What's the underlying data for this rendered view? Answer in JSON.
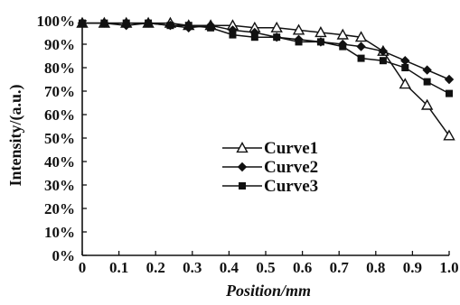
{
  "chart_data": {
    "type": "line",
    "xlabel": "Position/mm",
    "ylabel": "Intensity/(a.u.)",
    "xlim": [
      0,
      1.0
    ],
    "ylim": [
      0,
      100
    ],
    "x_ticks": [
      0,
      0.1,
      0.2,
      0.3,
      0.4,
      0.5,
      0.6,
      0.7,
      0.8,
      0.9,
      1.0
    ],
    "x_tick_labels": [
      "0",
      "0.1",
      "0.2",
      "0.3",
      "0.4",
      "0.5",
      "0.6",
      "0.7",
      "0.8",
      "0.9",
      "1.0"
    ],
    "y_ticks": [
      0,
      10,
      20,
      30,
      40,
      50,
      60,
      70,
      80,
      90,
      100
    ],
    "y_tick_labels": [
      "0%",
      "10%",
      "20%",
      "30%",
      "40%",
      "50%",
      "60%",
      "70%",
      "80%",
      "90%",
      "100%"
    ],
    "grid": false,
    "legend_position": "center",
    "colors": {
      "line": "#111111",
      "axis": "#111111"
    },
    "series": [
      {
        "name": "Curve1",
        "marker": "triangle-open",
        "x": [
          0,
          0.06,
          0.12,
          0.18,
          0.24,
          0.29,
          0.35,
          0.41,
          0.47,
          0.53,
          0.59,
          0.65,
          0.71,
          0.76,
          0.82,
          0.88,
          0.94,
          1.0
        ],
        "y": [
          99,
          99,
          99,
          99,
          99,
          98,
          98,
          98,
          97,
          97,
          96,
          95,
          94,
          93,
          87,
          73,
          64,
          51
        ]
      },
      {
        "name": "Curve2",
        "marker": "diamond-filled",
        "x": [
          0,
          0.06,
          0.12,
          0.18,
          0.24,
          0.29,
          0.35,
          0.41,
          0.47,
          0.53,
          0.59,
          0.65,
          0.71,
          0.76,
          0.82,
          0.88,
          0.94,
          1.0
        ],
        "y": [
          99,
          99,
          98,
          99,
          98,
          97,
          98,
          96,
          95,
          93,
          92,
          91,
          90,
          89,
          87,
          83,
          79,
          75
        ]
      },
      {
        "name": "Curve3",
        "marker": "square-filled",
        "x": [
          0,
          0.06,
          0.12,
          0.18,
          0.24,
          0.29,
          0.35,
          0.41,
          0.47,
          0.53,
          0.59,
          0.65,
          0.71,
          0.76,
          0.82,
          0.88,
          0.94,
          1.0
        ],
        "y": [
          99,
          99,
          99,
          99,
          98,
          98,
          97,
          94,
          93,
          93,
          91,
          91,
          89,
          84,
          83,
          80,
          74,
          69
        ]
      }
    ]
  }
}
